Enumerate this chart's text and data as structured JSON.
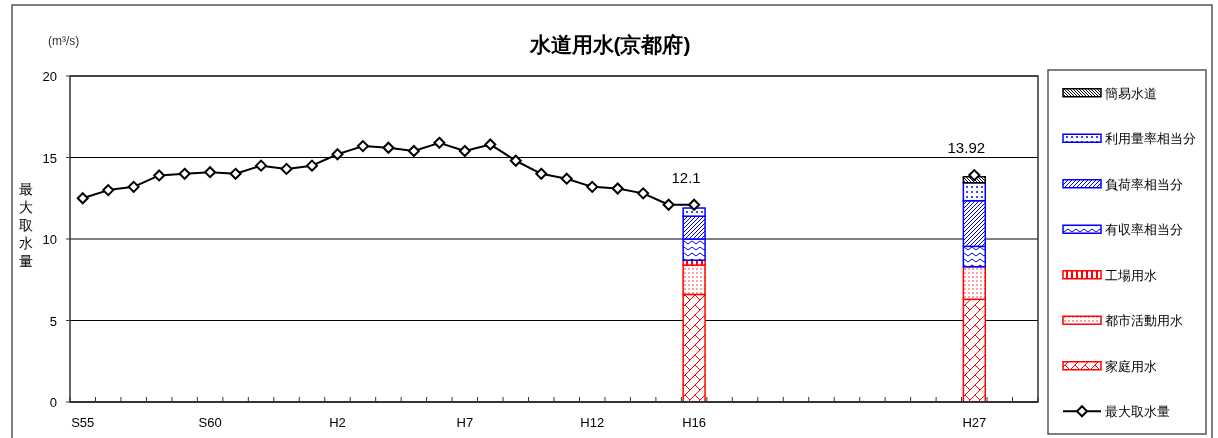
{
  "chart_data": {
    "type": "bar",
    "stacked": true,
    "title": "水道用水(京都府)",
    "ylabel": "最大取水量",
    "annotations": [
      "(m³/s)"
    ],
    "categories": [
      "S55",
      null,
      null,
      null,
      null,
      "S60",
      null,
      null,
      null,
      null,
      "H2",
      null,
      null,
      null,
      null,
      "H7",
      null,
      null,
      null,
      null,
      "H12",
      null,
      null,
      null,
      "H16",
      null,
      null,
      null,
      null,
      null,
      null,
      null,
      null,
      null,
      null,
      "H27",
      null,
      null
    ],
    "ylim": [
      0,
      20
    ],
    "yticks": [
      0,
      5,
      10,
      15,
      20
    ],
    "grid": "y",
    "legend": "right",
    "series": [
      {
        "name": "家庭用水",
        "color": "#ff0000",
        "values": [
          null,
          null,
          null,
          null,
          null,
          null,
          null,
          null,
          null,
          null,
          null,
          null,
          null,
          null,
          null,
          null,
          null,
          null,
          null,
          null,
          null,
          null,
          null,
          null,
          6.6,
          null,
          null,
          null,
          null,
          null,
          null,
          null,
          null,
          null,
          null,
          6.3,
          null,
          null
        ]
      },
      {
        "name": "都市活動用水",
        "color": "#ff0000",
        "values": [
          null,
          null,
          null,
          null,
          null,
          null,
          null,
          null,
          null,
          null,
          null,
          null,
          null,
          null,
          null,
          null,
          null,
          null,
          null,
          null,
          null,
          null,
          null,
          null,
          1.8,
          null,
          null,
          null,
          null,
          null,
          null,
          null,
          null,
          null,
          null,
          2.0,
          null,
          null
        ]
      },
      {
        "name": "工場用水",
        "color": "#ff0000",
        "values": [
          null,
          null,
          null,
          null,
          null,
          null,
          null,
          null,
          null,
          null,
          null,
          null,
          null,
          null,
          null,
          null,
          null,
          null,
          null,
          null,
          null,
          null,
          null,
          null,
          0.3,
          null,
          null,
          null,
          null,
          null,
          null,
          null,
          null,
          null,
          null,
          null,
          null,
          null
        ]
      },
      {
        "name": "有収率相当分",
        "color": "#0000ff",
        "values": [
          null,
          null,
          null,
          null,
          null,
          null,
          null,
          null,
          null,
          null,
          null,
          null,
          null,
          null,
          null,
          null,
          null,
          null,
          null,
          null,
          null,
          null,
          null,
          null,
          1.3,
          null,
          null,
          null,
          null,
          null,
          null,
          null,
          null,
          null,
          null,
          1.25,
          null,
          null
        ]
      },
      {
        "name": "負荷率相当分",
        "color": "#0000ff",
        "values": [
          null,
          null,
          null,
          null,
          null,
          null,
          null,
          null,
          null,
          null,
          null,
          null,
          null,
          null,
          null,
          null,
          null,
          null,
          null,
          null,
          null,
          null,
          null,
          null,
          1.4,
          null,
          null,
          null,
          null,
          null,
          null,
          null,
          null,
          null,
          null,
          2.8,
          null,
          null
        ]
      },
      {
        "name": "利用量率相当分",
        "color": "#0000ff",
        "values": [
          null,
          null,
          null,
          null,
          null,
          null,
          null,
          null,
          null,
          null,
          null,
          null,
          null,
          null,
          null,
          null,
          null,
          null,
          null,
          null,
          null,
          null,
          null,
          null,
          0.5,
          null,
          null,
          null,
          null,
          null,
          null,
          null,
          null,
          null,
          null,
          1.1,
          null,
          null
        ]
      },
      {
        "name": "簡易水道",
        "color": "#000000",
        "values": [
          null,
          null,
          null,
          null,
          null,
          null,
          null,
          null,
          null,
          null,
          null,
          null,
          null,
          null,
          null,
          null,
          null,
          null,
          null,
          null,
          null,
          null,
          null,
          null,
          null,
          null,
          null,
          null,
          null,
          null,
          null,
          null,
          null,
          null,
          null,
          0.37,
          null,
          null
        ]
      },
      {
        "name": "最大取水量",
        "type": "line",
        "color": "#000000",
        "marker": "diamond",
        "line_style": "solid",
        "values": [
          12.5,
          13.0,
          13.2,
          13.9,
          14.0,
          14.1,
          14.0,
          14.5,
          14.3,
          14.5,
          15.2,
          15.7,
          15.6,
          15.4,
          15.9,
          15.4,
          15.8,
          14.8,
          14.0,
          13.7,
          13.2,
          13.1,
          12.8,
          12.1,
          12.1,
          null,
          null,
          null,
          null,
          null,
          null,
          null,
          null,
          null,
          null,
          13.92,
          null,
          null
        ],
        "value_labels": [
          null,
          null,
          null,
          null,
          null,
          null,
          null,
          null,
          null,
          null,
          null,
          null,
          null,
          null,
          null,
          null,
          null,
          null,
          null,
          null,
          null,
          null,
          null,
          null,
          "12.1",
          null,
          null,
          null,
          null,
          null,
          null,
          null,
          null,
          null,
          null,
          "13.92",
          null,
          null
        ]
      }
    ]
  }
}
